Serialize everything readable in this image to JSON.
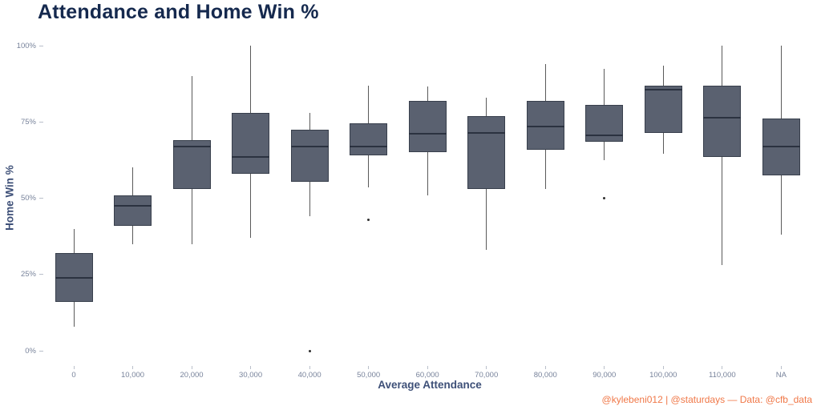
{
  "title": "Attendance and Home Win %",
  "attribution": "@kylebeni012 | @staturdays — Data: @cfb_data",
  "colors": {
    "title": "#15294e",
    "axis_title": "#3e5078",
    "tick_label": "#78839b",
    "tick_mark": "#b9bfca",
    "box_fill": "#5a6170",
    "box_border": "#383f4c",
    "median": "#2b3240",
    "whisker": "#5a5a5a",
    "outlier": "#2f2f2f",
    "attribution": "#f07848",
    "background": "#ffffff"
  },
  "chart_data": {
    "type": "boxplot",
    "title": "Attendance and Home Win %",
    "xlabel": "Average Attendance",
    "ylabel": "Home Win %",
    "ylim": [
      0,
      100
    ],
    "y_ticks": [
      "0%",
      "25%",
      "50%",
      "75%",
      "100%"
    ],
    "grid": false,
    "legend": false,
    "categories": [
      "0",
      "10,000",
      "20,000",
      "30,000",
      "40,000",
      "50,000",
      "60,000",
      "70,000",
      "80,000",
      "90,000",
      "100,000",
      "110,000",
      "NA"
    ],
    "boxes": [
      {
        "category": "0",
        "low": 8,
        "q1": 16,
        "median": 24,
        "q3": 32,
        "high": 40,
        "outliers": []
      },
      {
        "category": "10,000",
        "low": 35,
        "q1": 41,
        "median": 47.5,
        "q3": 51,
        "high": 60,
        "outliers": []
      },
      {
        "category": "20,000",
        "low": 35,
        "q1": 53,
        "median": 67,
        "q3": 69,
        "high": 90,
        "outliers": []
      },
      {
        "category": "30,000",
        "low": 37,
        "q1": 58,
        "median": 63.5,
        "q3": 78,
        "high": 100,
        "outliers": []
      },
      {
        "category": "40,000",
        "low": 44,
        "q1": 55.5,
        "median": 67,
        "q3": 72.5,
        "high": 78,
        "outliers": [
          0
        ]
      },
      {
        "category": "50,000",
        "low": 53.5,
        "q1": 64,
        "median": 67,
        "q3": 74.5,
        "high": 87,
        "outliers": [
          43
        ]
      },
      {
        "category": "60,000",
        "low": 51,
        "q1": 65,
        "median": 71,
        "q3": 82,
        "high": 86.5,
        "outliers": []
      },
      {
        "category": "70,000",
        "low": 33,
        "q1": 53,
        "median": 71.5,
        "q3": 77,
        "high": 83,
        "outliers": []
      },
      {
        "category": "80,000",
        "low": 53,
        "q1": 66,
        "median": 73.5,
        "q3": 82,
        "high": 94,
        "outliers": []
      },
      {
        "category": "90,000",
        "low": 62.5,
        "q1": 68.5,
        "median": 70.5,
        "q3": 80.5,
        "high": 92.5,
        "outliers": [
          50
        ]
      },
      {
        "category": "100,000",
        "low": 64.5,
        "q1": 71.5,
        "median": 85.5,
        "q3": 87,
        "high": 93.5,
        "outliers": []
      },
      {
        "category": "110,000",
        "low": 28,
        "q1": 63.5,
        "median": 76.5,
        "q3": 87,
        "high": 100,
        "outliers": []
      },
      {
        "category": "NA",
        "low": 38,
        "q1": 57.5,
        "median": 67,
        "q3": 76,
        "high": 100,
        "outliers": []
      }
    ]
  }
}
